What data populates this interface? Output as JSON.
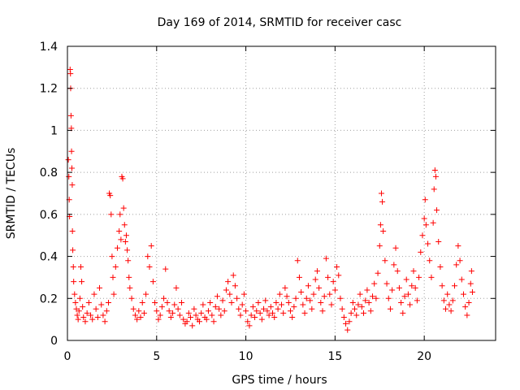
{
  "chart_data": {
    "type": "scatter",
    "title": "Day 169 of 2014, SRMTID for receiver casc",
    "xlabel": "GPS time / hours",
    "ylabel": "SRMTID / TECUs",
    "xlim": [
      0,
      24
    ],
    "ylim": [
      0,
      1.4
    ],
    "x_ticks": [
      0,
      5,
      10,
      15,
      20
    ],
    "x_tick_labels": [
      "0",
      "5",
      "10",
      "15",
      "20"
    ],
    "y_ticks": [
      0,
      0.2,
      0.4,
      0.6,
      0.8,
      1.0,
      1.2,
      1.4
    ],
    "y_tick_labels": [
      "0",
      "0.2",
      "0.4",
      "0.6",
      "0.8",
      "1",
      "1.2",
      "1.4"
    ],
    "grid": true,
    "marker": "plus",
    "color": "#ff0000",
    "series": [
      {
        "name": "SRMTID",
        "points": [
          [
            0.05,
            0.86
          ],
          [
            0.08,
            0.78
          ],
          [
            0.1,
            0.67
          ],
          [
            0.12,
            0.59
          ],
          [
            0.15,
            1.29
          ],
          [
            0.17,
            1.27
          ],
          [
            0.18,
            1.2
          ],
          [
            0.2,
            1.07
          ],
          [
            0.22,
            1.01
          ],
          [
            0.23,
            0.9
          ],
          [
            0.25,
            0.82
          ],
          [
            0.27,
            0.74
          ],
          [
            0.28,
            0.52
          ],
          [
            0.3,
            0.43
          ],
          [
            0.33,
            0.35
          ],
          [
            0.35,
            0.28
          ],
          [
            0.4,
            0.22
          ],
          [
            0.45,
            0.18
          ],
          [
            0.5,
            0.15
          ],
          [
            0.55,
            0.12
          ],
          [
            0.6,
            0.1
          ],
          [
            0.65,
            0.14
          ],
          [
            0.7,
            0.2
          ],
          [
            0.75,
            0.35
          ],
          [
            0.8,
            0.28
          ],
          [
            0.85,
            0.16
          ],
          [
            0.9,
            0.11
          ],
          [
            1.0,
            0.09
          ],
          [
            1.1,
            0.13
          ],
          [
            1.2,
            0.18
          ],
          [
            1.3,
            0.12
          ],
          [
            1.4,
            0.1
          ],
          [
            1.5,
            0.22
          ],
          [
            1.6,
            0.15
          ],
          [
            1.7,
            0.11
          ],
          [
            1.8,
            0.25
          ],
          [
            1.9,
            0.17
          ],
          [
            2.0,
            0.12
          ],
          [
            2.1,
            0.09
          ],
          [
            2.2,
            0.14
          ],
          [
            2.3,
            0.18
          ],
          [
            2.35,
            0.7
          ],
          [
            2.4,
            0.69
          ],
          [
            2.45,
            0.6
          ],
          [
            2.5,
            0.4
          ],
          [
            2.55,
            0.3
          ],
          [
            2.6,
            0.22
          ],
          [
            2.7,
            0.35
          ],
          [
            2.8,
            0.44
          ],
          [
            2.9,
            0.52
          ],
          [
            2.95,
            0.6
          ],
          [
            3.0,
            0.48
          ],
          [
            3.05,
            0.78
          ],
          [
            3.1,
            0.77
          ],
          [
            3.15,
            0.63
          ],
          [
            3.2,
            0.55
          ],
          [
            3.25,
            0.47
          ],
          [
            3.3,
            0.5
          ],
          [
            3.35,
            0.43
          ],
          [
            3.4,
            0.38
          ],
          [
            3.45,
            0.3
          ],
          [
            3.5,
            0.25
          ],
          [
            3.6,
            0.2
          ],
          [
            3.7,
            0.15
          ],
          [
            3.8,
            0.12
          ],
          [
            3.9,
            0.1
          ],
          [
            4.0,
            0.14
          ],
          [
            4.1,
            0.11
          ],
          [
            4.2,
            0.18
          ],
          [
            4.3,
            0.13
          ],
          [
            4.4,
            0.22
          ],
          [
            4.5,
            0.4
          ],
          [
            4.6,
            0.35
          ],
          [
            4.7,
            0.45
          ],
          [
            4.8,
            0.28
          ],
          [
            4.9,
            0.18
          ],
          [
            5.0,
            0.14
          ],
          [
            5.1,
            0.1
          ],
          [
            5.2,
            0.12
          ],
          [
            5.3,
            0.16
          ],
          [
            5.4,
            0.2
          ],
          [
            5.5,
            0.34
          ],
          [
            5.6,
            0.18
          ],
          [
            5.7,
            0.14
          ],
          [
            5.8,
            0.11
          ],
          [
            5.9,
            0.13
          ],
          [
            6.0,
            0.17
          ],
          [
            6.1,
            0.25
          ],
          [
            6.2,
            0.15
          ],
          [
            6.3,
            0.12
          ],
          [
            6.4,
            0.18
          ],
          [
            6.5,
            0.1
          ],
          [
            6.6,
            0.08
          ],
          [
            6.7,
            0.09
          ],
          [
            6.8,
            0.13
          ],
          [
            6.9,
            0.11
          ],
          [
            7.0,
            0.07
          ],
          [
            7.1,
            0.15
          ],
          [
            7.2,
            0.12
          ],
          [
            7.3,
            0.1
          ],
          [
            7.4,
            0.09
          ],
          [
            7.5,
            0.13
          ],
          [
            7.6,
            0.17
          ],
          [
            7.7,
            0.11
          ],
          [
            7.8,
            0.1
          ],
          [
            7.9,
            0.14
          ],
          [
            8.0,
            0.18
          ],
          [
            8.1,
            0.12
          ],
          [
            8.2,
            0.09
          ],
          [
            8.3,
            0.16
          ],
          [
            8.4,
            0.21
          ],
          [
            8.5,
            0.15
          ],
          [
            8.6,
            0.12
          ],
          [
            8.7,
            0.19
          ],
          [
            8.8,
            0.14
          ],
          [
            8.9,
            0.24
          ],
          [
            9.0,
            0.28
          ],
          [
            9.1,
            0.22
          ],
          [
            9.2,
            0.18
          ],
          [
            9.3,
            0.31
          ],
          [
            9.4,
            0.26
          ],
          [
            9.5,
            0.2
          ],
          [
            9.6,
            0.15
          ],
          [
            9.7,
            0.12
          ],
          [
            9.8,
            0.17
          ],
          [
            9.9,
            0.22
          ],
          [
            10.0,
            0.14
          ],
          [
            10.1,
            0.09
          ],
          [
            10.2,
            0.07
          ],
          [
            10.3,
            0.12
          ],
          [
            10.4,
            0.16
          ],
          [
            10.5,
            0.11
          ],
          [
            10.6,
            0.14
          ],
          [
            10.7,
            0.18
          ],
          [
            10.8,
            0.13
          ],
          [
            10.9,
            0.1
          ],
          [
            11.0,
            0.15
          ],
          [
            11.1,
            0.19
          ],
          [
            11.2,
            0.14
          ],
          [
            11.3,
            0.12
          ],
          [
            11.4,
            0.16
          ],
          [
            11.5,
            0.13
          ],
          [
            11.6,
            0.11
          ],
          [
            11.7,
            0.18
          ],
          [
            11.8,
            0.15
          ],
          [
            11.9,
            0.22
          ],
          [
            12.0,
            0.17
          ],
          [
            12.1,
            0.13
          ],
          [
            12.2,
            0.25
          ],
          [
            12.3,
            0.21
          ],
          [
            12.4,
            0.18
          ],
          [
            12.5,
            0.14
          ],
          [
            12.6,
            0.11
          ],
          [
            12.7,
            0.16
          ],
          [
            12.8,
            0.2
          ],
          [
            12.9,
            0.38
          ],
          [
            13.0,
            0.3
          ],
          [
            13.1,
            0.23
          ],
          [
            13.2,
            0.17
          ],
          [
            13.3,
            0.13
          ],
          [
            13.4,
            0.2
          ],
          [
            13.5,
            0.26
          ],
          [
            13.6,
            0.19
          ],
          [
            13.7,
            0.15
          ],
          [
            13.8,
            0.22
          ],
          [
            13.9,
            0.29
          ],
          [
            14.0,
            0.33
          ],
          [
            14.1,
            0.25
          ],
          [
            14.2,
            0.18
          ],
          [
            14.3,
            0.14
          ],
          [
            14.4,
            0.21
          ],
          [
            14.5,
            0.39
          ],
          [
            14.6,
            0.3
          ],
          [
            14.7,
            0.22
          ],
          [
            14.8,
            0.17
          ],
          [
            14.9,
            0.28
          ],
          [
            15.0,
            0.24
          ],
          [
            15.1,
            0.35
          ],
          [
            15.2,
            0.31
          ],
          [
            15.3,
            0.2
          ],
          [
            15.4,
            0.15
          ],
          [
            15.5,
            0.11
          ],
          [
            15.6,
            0.08
          ],
          [
            15.7,
            0.05
          ],
          [
            15.8,
            0.09
          ],
          [
            15.9,
            0.13
          ],
          [
            16.0,
            0.18
          ],
          [
            16.1,
            0.15
          ],
          [
            16.2,
            0.12
          ],
          [
            16.3,
            0.17
          ],
          [
            16.4,
            0.22
          ],
          [
            16.5,
            0.16
          ],
          [
            16.6,
            0.13
          ],
          [
            16.7,
            0.19
          ],
          [
            16.8,
            0.24
          ],
          [
            16.9,
            0.18
          ],
          [
            17.0,
            0.14
          ],
          [
            17.1,
            0.21
          ],
          [
            17.2,
            0.27
          ],
          [
            17.3,
            0.2
          ],
          [
            17.4,
            0.32
          ],
          [
            17.5,
            0.45
          ],
          [
            17.55,
            0.55
          ],
          [
            17.6,
            0.7
          ],
          [
            17.65,
            0.66
          ],
          [
            17.7,
            0.52
          ],
          [
            17.8,
            0.38
          ],
          [
            17.9,
            0.27
          ],
          [
            18.0,
            0.2
          ],
          [
            18.1,
            0.15
          ],
          [
            18.2,
            0.24
          ],
          [
            18.3,
            0.36
          ],
          [
            18.4,
            0.44
          ],
          [
            18.5,
            0.33
          ],
          [
            18.6,
            0.25
          ],
          [
            18.7,
            0.18
          ],
          [
            18.8,
            0.13
          ],
          [
            18.9,
            0.21
          ],
          [
            19.0,
            0.29
          ],
          [
            19.1,
            0.22
          ],
          [
            19.2,
            0.17
          ],
          [
            19.3,
            0.26
          ],
          [
            19.4,
            0.33
          ],
          [
            19.5,
            0.25
          ],
          [
            19.6,
            0.19
          ],
          [
            19.7,
            0.3
          ],
          [
            19.8,
            0.42
          ],
          [
            19.9,
            0.5
          ],
          [
            20.0,
            0.58
          ],
          [
            20.05,
            0.67
          ],
          [
            20.1,
            0.55
          ],
          [
            20.2,
            0.46
          ],
          [
            20.3,
            0.38
          ],
          [
            20.4,
            0.3
          ],
          [
            20.5,
            0.56
          ],
          [
            20.55,
            0.72
          ],
          [
            20.6,
            0.81
          ],
          [
            20.65,
            0.78
          ],
          [
            20.7,
            0.62
          ],
          [
            20.8,
            0.47
          ],
          [
            20.9,
            0.35
          ],
          [
            21.0,
            0.26
          ],
          [
            21.1,
            0.19
          ],
          [
            21.2,
            0.15
          ],
          [
            21.3,
            0.22
          ],
          [
            21.4,
            0.17
          ],
          [
            21.5,
            0.14
          ],
          [
            21.6,
            0.19
          ],
          [
            21.7,
            0.26
          ],
          [
            21.8,
            0.36
          ],
          [
            21.9,
            0.45
          ],
          [
            22.0,
            0.38
          ],
          [
            22.1,
            0.29
          ],
          [
            22.2,
            0.22
          ],
          [
            22.3,
            0.16
          ],
          [
            22.4,
            0.12
          ],
          [
            22.5,
            0.18
          ],
          [
            22.6,
            0.27
          ],
          [
            22.65,
            0.33
          ],
          [
            22.7,
            0.23
          ]
        ]
      }
    ]
  }
}
